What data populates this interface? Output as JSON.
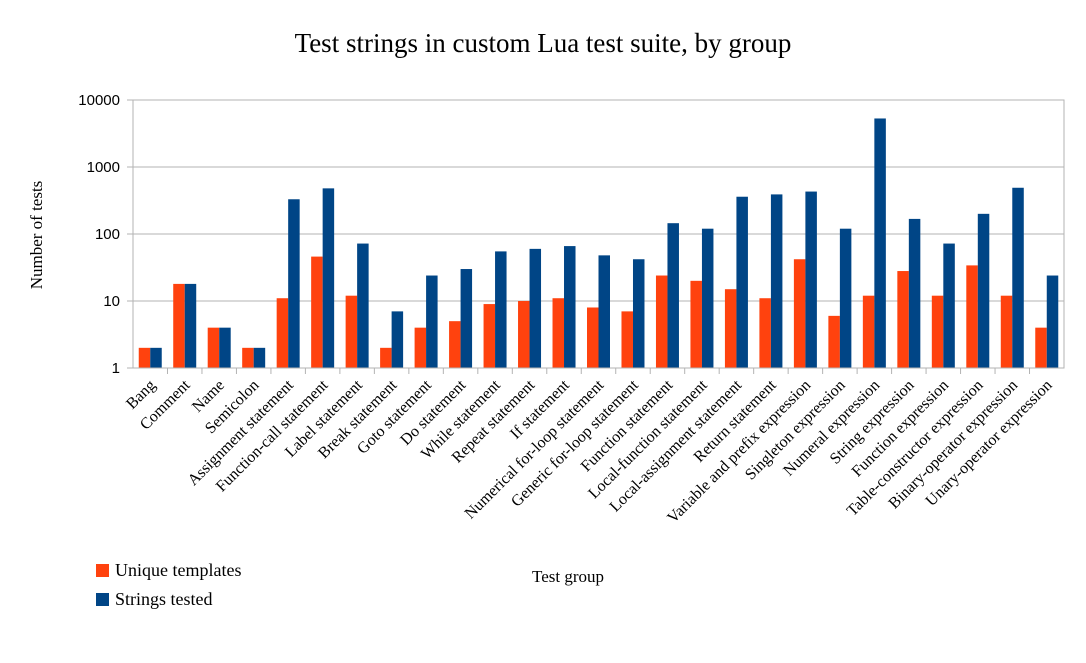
{
  "chart_data": {
    "type": "bar",
    "title": "Test strings in custom Lua test suite, by group",
    "xlabel": "Test group",
    "ylabel": "Number of tests",
    "yscale": "log",
    "ylim": [
      1,
      10000
    ],
    "yticks": [
      "1",
      "10",
      "100",
      "1000",
      "10000"
    ],
    "grid": "horizontal",
    "legend_position": "bottom-left",
    "categories": [
      "Bang",
      "Comment",
      "Name",
      "Semicolon",
      "Assignment statement",
      "Function-call statement",
      "Label statement",
      "Break statement",
      "Goto statement",
      "Do statement",
      "While statement",
      "Repeat statement",
      "If statement",
      "Numerical for-loop statement",
      "Generic for-loop statement",
      "Function statement",
      "Local-function statement",
      "Local-assignment statement",
      "Return statement",
      "Variable and prefix expression",
      "Singleton expression",
      "Numeral expression",
      "String expression",
      "Function expression",
      "Table-constructor expression",
      "Binary-operator expression",
      "Unary-operator expression"
    ],
    "series": [
      {
        "name": "Unique templates",
        "color": "#ff420e",
        "values": [
          2,
          18,
          4,
          2,
          11,
          46,
          12,
          2,
          4,
          5,
          9,
          10,
          11,
          8,
          7,
          24,
          20,
          15,
          11,
          42,
          6,
          12,
          28,
          12,
          34,
          12,
          4
        ]
      },
      {
        "name": "Strings tested",
        "color": "#004586",
        "values": [
          2,
          18,
          4,
          2,
          330,
          480,
          72,
          7,
          24,
          30,
          55,
          60,
          66,
          48,
          42,
          145,
          120,
          360,
          390,
          430,
          120,
          5300,
          168,
          72,
          200,
          490,
          24
        ]
      }
    ]
  }
}
